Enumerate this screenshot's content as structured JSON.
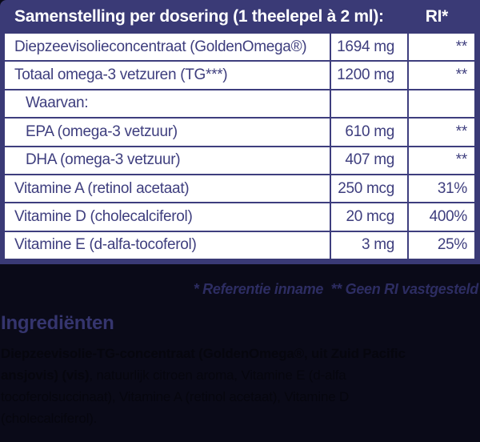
{
  "colors": {
    "background": "#0a0a18",
    "table_header_bg": "#3a3a76",
    "table_header_text": "#ffffff",
    "table_body_bg": "#ffffff",
    "table_text": "#3e3e7e",
    "footnote_text": "#2d2d62",
    "ingredients_title_text": "#35356e",
    "ingredients_body_text": "#06060e"
  },
  "table": {
    "header": {
      "title": "Samenstelling per dosering (1 theelepel à 2 ml):",
      "ri_label": "RI*"
    },
    "rows": [
      {
        "label": "Diepzeevisolieconcentraat (GoldenOmega®)",
        "amount": "1694 mg",
        "ri": "**"
      },
      {
        "label": "Totaal omega-3 vetzuren (TG***)",
        "amount": "1200 mg",
        "ri": "**"
      },
      {
        "label": "Waarvan:",
        "amount": "",
        "ri": ""
      },
      {
        "label": "EPA (omega-3 vetzuur)",
        "amount": "610 mg",
        "ri": "**"
      },
      {
        "label": "DHA (omega-3 vetzuur)",
        "amount": "407 mg",
        "ri": "**"
      },
      {
        "label": "Vitamine A (retinol acetaat)",
        "amount": "250 mcg",
        "ri": "31%"
      },
      {
        "label": "Vitamine D (cholecalciferol)",
        "amount": "20 mcg",
        "ri": "400%"
      },
      {
        "label": "Vitamine E (d-alfa-tocoferol)",
        "amount": "3 mg",
        "ri": "25%"
      }
    ]
  },
  "footnotes": {
    "text": "* Referentie inname  ** Geen RI vastgesteld"
  },
  "ingredients": {
    "title": "Ingrediënten",
    "bold_segment": "Diepzeevisolie-TG-concentraat (GoldenOmega®, uit Zuid Pacific ansjovis) (vis)",
    "regular_segment": ", natuurlijk citroen aroma, Vitamine E (d-alfa tocoferolsuccinaat), Vitamine A (retinol acetaat), Vitamine D (cholecalciferol)."
  }
}
